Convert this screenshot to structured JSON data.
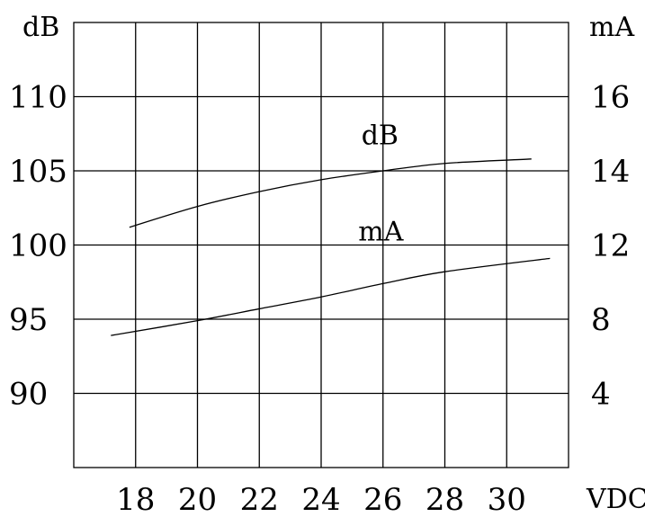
{
  "chart_data": {
    "type": "line",
    "x_axis": {
      "label": "VDC",
      "ticks": [
        18,
        20,
        22,
        24,
        26,
        28,
        30
      ],
      "range": [
        16,
        32
      ]
    },
    "y_left": {
      "label": "dB",
      "ticks": [
        90,
        95,
        100,
        105,
        110
      ],
      "range": [
        85,
        115
      ]
    },
    "y_right": {
      "label": "mA",
      "ticks": [
        4,
        8,
        12,
        14,
        16
      ],
      "tick_levels_db": [
        90,
        95,
        100,
        105,
        110
      ]
    },
    "grid": true,
    "series": [
      {
        "name": "dB",
        "axis": "left",
        "label_at": [
          25.3,
          106.8
        ],
        "x": [
          17.8,
          20,
          22,
          24,
          26,
          28,
          30.8
        ],
        "y": [
          101.2,
          102.6,
          103.6,
          104.4,
          105.0,
          105.5,
          105.8
        ]
      },
      {
        "name": "mA",
        "axis": "left",
        "label_at": [
          25.2,
          100.3
        ],
        "x": [
          17.2,
          20,
          22,
          24,
          26,
          28,
          31.4
        ],
        "y": [
          93.9,
          94.9,
          95.7,
          96.5,
          97.4,
          98.2,
          99.1
        ]
      }
    ]
  }
}
